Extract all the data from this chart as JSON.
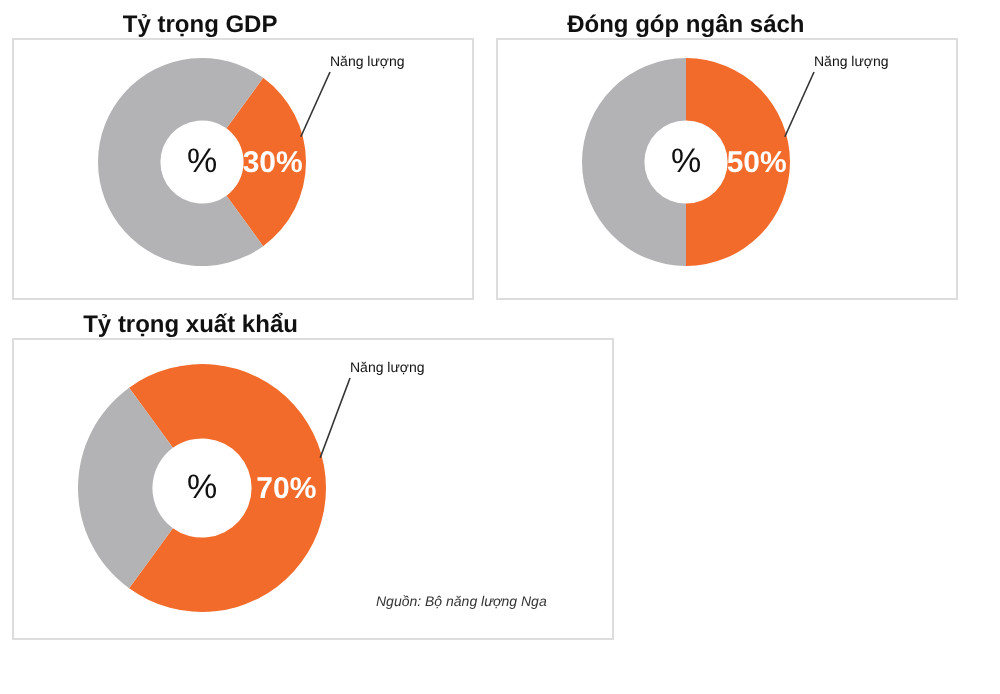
{
  "chart_data": [
    {
      "type": "donut",
      "title": "Tỷ trọng GDP",
      "categories": [
        "Năng lượng",
        null
      ],
      "values": [
        30,
        70
      ],
      "colors": [
        "#f26b2a",
        "#b3b3b5"
      ],
      "value_labels": [
        "30%",
        null
      ],
      "annotations": [
        "%"
      ],
      "legend": false
    },
    {
      "type": "donut",
      "title": "Đóng góp ngân sách",
      "categories": [
        "Năng lượng",
        null
      ],
      "values": [
        50,
        50
      ],
      "colors": [
        "#f26b2a",
        "#b3b3b5"
      ],
      "value_labels": [
        "50%",
        null
      ],
      "annotations": [
        "%"
      ],
      "legend": false
    },
    {
      "type": "donut",
      "title": "Tỷ trọng xuất khẩu",
      "categories": [
        "Năng lượng",
        null
      ],
      "values": [
        70,
        30
      ],
      "colors": [
        "#f26b2a",
        "#b3b3b5"
      ],
      "value_labels": [
        "70%",
        null
      ],
      "annotations": [
        "%",
        "Nguồn: Bộ năng lượng Nga"
      ],
      "legend": false
    }
  ]
}
